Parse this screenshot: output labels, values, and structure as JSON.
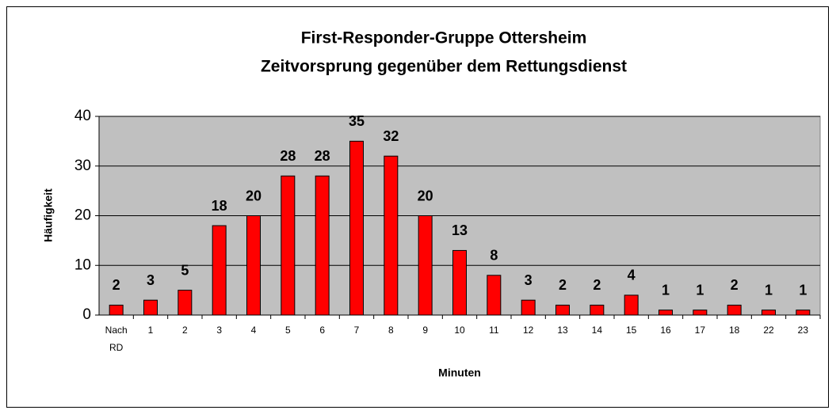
{
  "chart_data": {
    "type": "bar",
    "title": [
      "First-Responder-Gruppe Ottersheim",
      "Zeitvorsprung gegenüber dem Rettungsdienst"
    ],
    "x_label": "Minuten",
    "y_label": "Häufigkeit",
    "categories": [
      "Nach RD",
      "1",
      "2",
      "3",
      "4",
      "5",
      "6",
      "7",
      "8",
      "9",
      "10",
      "11",
      "12",
      "13",
      "14",
      "15",
      "16",
      "17",
      "18",
      "22",
      "23"
    ],
    "values": [
      2,
      3,
      5,
      18,
      20,
      28,
      28,
      35,
      32,
      20,
      13,
      8,
      3,
      2,
      2,
      4,
      1,
      1,
      2,
      1,
      1
    ],
    "color": "#ff0000",
    "ylim": [
      0,
      40
    ],
    "yticks": [
      0,
      10,
      20,
      30,
      40
    ],
    "grid": true
  }
}
